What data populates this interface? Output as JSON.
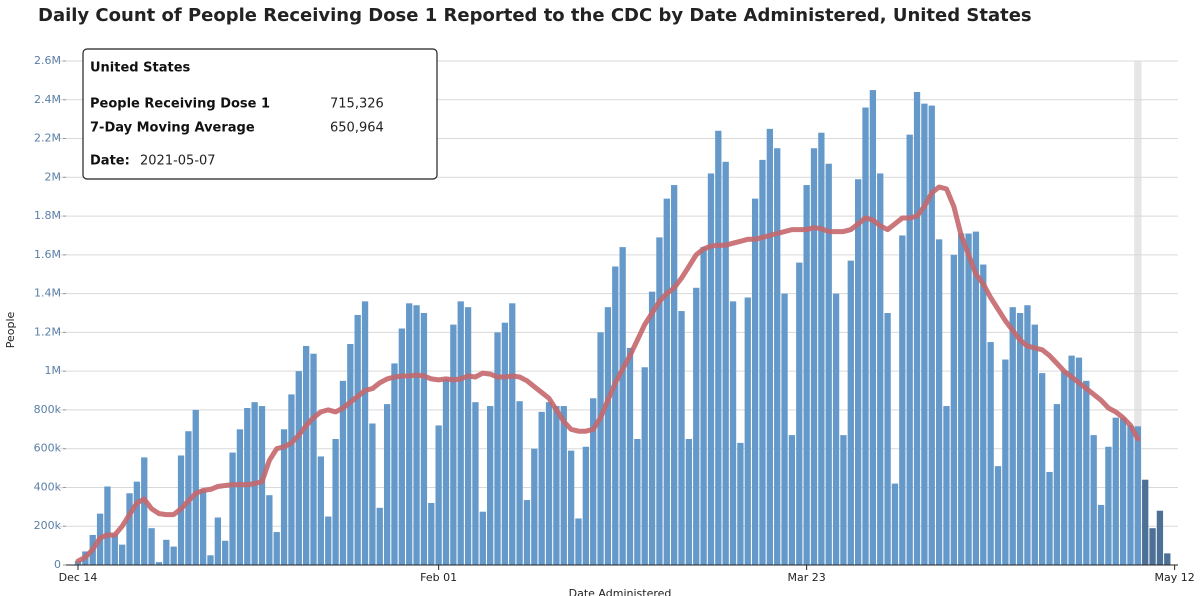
{
  "chart_data": {
    "type": "bar_line",
    "title": "Daily Count of People Receiving Dose 1 Reported to the CDC by Date Administered, United States",
    "y_label": "People",
    "x_label": "Date Administered",
    "categories": [
      "Dec 14",
      null,
      null,
      null,
      null,
      null,
      null,
      null,
      null,
      null,
      null,
      null,
      null,
      null,
      null,
      null,
      null,
      null,
      null,
      null,
      null,
      null,
      null,
      null,
      null,
      null,
      null,
      null,
      null,
      null,
      null,
      null,
      null,
      null,
      null,
      null,
      null,
      null,
      null,
      null,
      null,
      null,
      null,
      null,
      null,
      null,
      null,
      null,
      null,
      "Feb 01",
      null,
      null,
      null,
      null,
      null,
      null,
      null,
      null,
      null,
      null,
      null,
      null,
      null,
      null,
      null,
      null,
      null,
      null,
      null,
      null,
      null,
      null,
      null,
      null,
      null,
      null,
      null,
      null,
      null,
      null,
      null,
      null,
      null,
      null,
      null,
      null,
      null,
      null,
      null,
      null,
      null,
      null,
      null,
      null,
      null,
      null,
      null,
      null,
      null,
      "Mar 23",
      null,
      null,
      null,
      null,
      null,
      null,
      null,
      null,
      null,
      null,
      null,
      null,
      null,
      null,
      null,
      null,
      null,
      null,
      null,
      null,
      null,
      null,
      null,
      null,
      null,
      null,
      null,
      null,
      null,
      null,
      null,
      null,
      null,
      null,
      null,
      null,
      null,
      null,
      null,
      null,
      null,
      null,
      null,
      null,
      null,
      null,
      null,
      null,
      null,
      "May 12"
    ],
    "series": [
      {
        "name": "People Receiving Dose 1",
        "color": "#6499c9",
        "incomplete_color": "#4d7196",
        "values": [
          20000,
          70000,
          155000,
          265000,
          405000,
          160000,
          105000,
          370000,
          430000,
          555000,
          190000,
          15000,
          130000,
          95000,
          565000,
          690000,
          800000,
          390000,
          50000,
          245000,
          125000,
          580000,
          700000,
          810000,
          840000,
          820000,
          360000,
          170000,
          700000,
          880000,
          1000000,
          1130000,
          1090000,
          560000,
          250000,
          650000,
          950000,
          1140000,
          1290000,
          1360000,
          730000,
          295000,
          830000,
          1040000,
          1220000,
          1350000,
          1340000,
          1300000,
          320000,
          720000,
          960000,
          1240000,
          1360000,
          1330000,
          840000,
          275000,
          820000,
          1200000,
          1250000,
          1350000,
          845000,
          335000,
          600000,
          790000,
          840000,
          820000,
          820000,
          590000,
          240000,
          610000,
          860000,
          1200000,
          1330000,
          1540000,
          1640000,
          1120000,
          650000,
          1020000,
          1410000,
          1690000,
          1890000,
          1960000,
          1310000,
          650000,
          1430000,
          1640000,
          2020000,
          2240000,
          2080000,
          1360000,
          630000,
          1380000,
          1890000,
          2090000,
          2250000,
          2150000,
          1400000,
          670000,
          1560000,
          1960000,
          2150000,
          2230000,
          2070000,
          1400000,
          670000,
          1570000,
          1990000,
          2360000,
          2450000,
          2020000,
          1300000,
          420000,
          1700000,
          2220000,
          2440000,
          2380000,
          2370000,
          1680000,
          820000,
          1600000,
          1710000,
          1710000,
          1720000,
          1550000,
          1150000,
          510000,
          1060000,
          1330000,
          1300000,
          1340000,
          1240000,
          990000,
          480000,
          830000,
          1000000,
          1080000,
          1070000,
          950000,
          670000,
          310000,
          610000,
          760000,
          760000,
          720000,
          715326,
          440000,
          190000,
          280000,
          60000,
          null
        ]
      },
      {
        "name": "7-Day Moving Average",
        "color": "#c4676b",
        "values": [
          20000,
          40000,
          80000,
          140000,
          155000,
          155000,
          200000,
          260000,
          320000,
          340000,
          290000,
          265000,
          260000,
          260000,
          290000,
          330000,
          370000,
          385000,
          390000,
          405000,
          410000,
          415000,
          415000,
          415000,
          420000,
          430000,
          540000,
          600000,
          610000,
          630000,
          670000,
          720000,
          760000,
          790000,
          800000,
          790000,
          810000,
          840000,
          870000,
          900000,
          910000,
          940000,
          960000,
          970000,
          975000,
          975000,
          980000,
          975000,
          960000,
          955000,
          960000,
          955000,
          960000,
          975000,
          970000,
          990000,
          985000,
          970000,
          970000,
          975000,
          970000,
          950000,
          920000,
          890000,
          860000,
          800000,
          740000,
          700000,
          690000,
          690000,
          700000,
          760000,
          850000,
          940000,
          1010000,
          1080000,
          1160000,
          1240000,
          1300000,
          1360000,
          1400000,
          1430000,
          1480000,
          1540000,
          1600000,
          1630000,
          1645000,
          1650000,
          1650000,
          1660000,
          1670000,
          1680000,
          1680000,
          1690000,
          1700000,
          1710000,
          1720000,
          1730000,
          1730000,
          1730000,
          1740000,
          1735000,
          1720000,
          1720000,
          1720000,
          1730000,
          1760000,
          1790000,
          1780000,
          1750000,
          1730000,
          1760000,
          1790000,
          1790000,
          1800000,
          1850000,
          1920000,
          1950000,
          1940000,
          1850000,
          1700000,
          1600000,
          1500000,
          1450000,
          1380000,
          1320000,
          1260000,
          1210000,
          1160000,
          1130000,
          1120000,
          1110000,
          1080000,
          1040000,
          1000000,
          970000,
          940000,
          910000,
          880000,
          850000,
          810000,
          790000,
          760000,
          720000,
          650964,
          null,
          null,
          null,
          null,
          null
        ]
      }
    ],
    "ylim": [
      0,
      2600000
    ],
    "yticks": [
      0,
      {
        "value": 200000,
        "label": "200k"
      },
      {
        "value": 400000,
        "label": "400k"
      },
      {
        "value": 600000,
        "label": "600k"
      },
      {
        "value": 800000,
        "label": "800k"
      },
      {
        "value": 1000000,
        "label": "1M"
      },
      {
        "value": 1200000,
        "label": "1.2M"
      },
      {
        "value": 1400000,
        "label": "1.4M"
      },
      {
        "value": 1600000,
        "label": "1.6M"
      },
      {
        "value": 1800000,
        "label": "1.8M"
      },
      {
        "value": 2000000,
        "label": "2M"
      },
      {
        "value": 2200000,
        "label": "2.2M"
      },
      {
        "value": 2400000,
        "label": "2.4M"
      },
      {
        "value": 2600000,
        "label": "2.6M"
      }
    ],
    "grid": true,
    "tooltip": {
      "title": "United States",
      "rows": [
        {
          "label": "People Receiving Dose 1",
          "value": "715,326"
        },
        {
          "label": "7-Day Moving Average",
          "value": "650,964"
        }
      ],
      "date_label": "Date:",
      "date": "2021-05-07",
      "highlight_value": 715326
    }
  }
}
